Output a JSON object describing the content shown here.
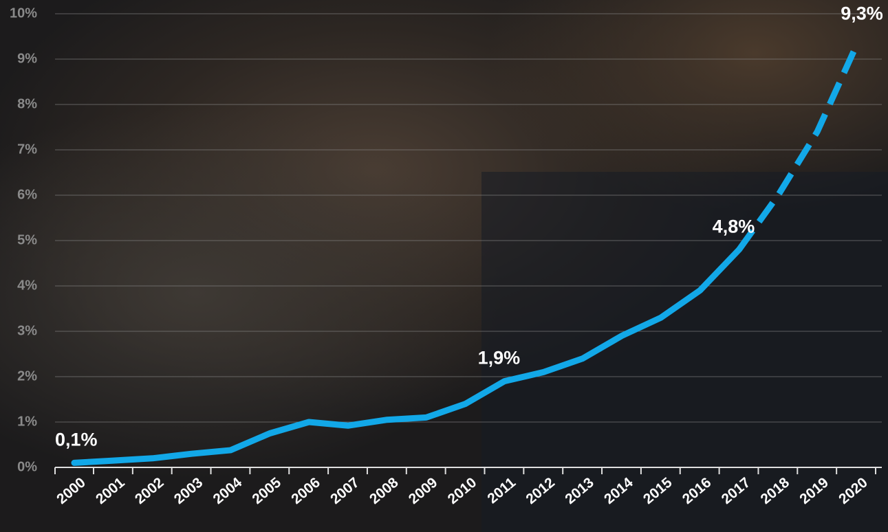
{
  "chart_data": {
    "type": "line",
    "categories": [
      "2000",
      "2001",
      "2002",
      "2003",
      "2004",
      "2005",
      "2006",
      "2007",
      "2008",
      "2009",
      "2010",
      "2011",
      "2012",
      "2013",
      "2014",
      "2015",
      "2016",
      "2017",
      "2018",
      "2019",
      "2020"
    ],
    "values": [
      0.1,
      0.15,
      0.2,
      0.3,
      0.38,
      0.75,
      1.0,
      0.92,
      1.05,
      1.1,
      1.4,
      1.9,
      2.1,
      2.4,
      2.9,
      3.3,
      3.9,
      4.8,
      6.0,
      7.4,
      9.3
    ],
    "value_labels": [
      "0,1%",
      null,
      null,
      null,
      null,
      null,
      null,
      null,
      null,
      null,
      null,
      "1,9%",
      null,
      null,
      null,
      null,
      null,
      "4,8%",
      null,
      null,
      "9,3%"
    ],
    "projected_from_index": 17,
    "color": "#12a8e8",
    "ylim": [
      0,
      10
    ],
    "yticks": [
      {
        "value": 0,
        "label": "0%"
      },
      {
        "value": 1,
        "label": "1%"
      },
      {
        "value": 2,
        "label": "2%"
      },
      {
        "value": 3,
        "label": "3%"
      },
      {
        "value": 4,
        "label": "4%"
      },
      {
        "value": 5,
        "label": "5%"
      },
      {
        "value": 6,
        "label": "6%"
      },
      {
        "value": 7,
        "label": "7%"
      },
      {
        "value": 8,
        "label": "8%"
      },
      {
        "value": 9,
        "label": "9%"
      },
      {
        "value": 10,
        "label": "10%"
      }
    ],
    "grid": true
  }
}
